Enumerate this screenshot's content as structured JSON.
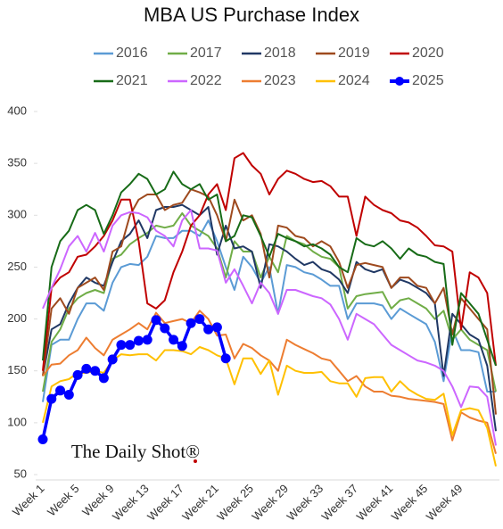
{
  "chart_data": {
    "type": "line",
    "title": "MBA US Purchase Index",
    "watermark": "The Daily Shot®",
    "categories": [
      "Week 1",
      null,
      null,
      null,
      "Week 5",
      null,
      null,
      null,
      "Week 9",
      null,
      null,
      null,
      "Week 13",
      null,
      null,
      null,
      "Week 17",
      null,
      null,
      null,
      "Week 21",
      null,
      null,
      null,
      "Week 25",
      null,
      null,
      null,
      "Week 29",
      null,
      null,
      null,
      "Week 33",
      null,
      null,
      null,
      "Week 37",
      null,
      null,
      null,
      "Week 41",
      null,
      null,
      null,
      "Week 45",
      null,
      null,
      null,
      "Week 49",
      null,
      null,
      null,
      null
    ],
    "ylim": [
      50,
      400
    ],
    "yticks": [
      50,
      100,
      150,
      200,
      250,
      300,
      350,
      400
    ],
    "series": [
      {
        "name": "2016",
        "color": "#5b9bd5",
        "values": [
          120,
          175,
          180,
          180,
          200,
          215,
          215,
          208,
          235,
          250,
          253,
          252,
          260,
          280,
          278,
          278,
          285,
          285,
          280,
          295,
          275,
          250,
          228,
          260,
          250,
          235,
          250,
          205,
          252,
          250,
          245,
          243,
          238,
          232,
          232,
          200,
          215,
          215,
          215,
          213,
          200,
          210,
          205,
          200,
          195,
          178,
          140,
          190,
          170,
          170,
          168,
          130,
          130
        ]
      },
      {
        "name": "2017",
        "color": "#70ad47",
        "values": [
          130,
          178,
          190,
          210,
          220,
          225,
          228,
          225,
          258,
          262,
          272,
          278,
          283,
          290,
          288,
          290,
          302,
          290,
          285,
          280,
          268,
          240,
          275,
          265,
          265,
          240,
          260,
          245,
          280,
          275,
          272,
          265,
          260,
          258,
          250,
          210,
          222,
          224,
          225,
          226,
          210,
          218,
          220,
          215,
          210,
          200,
          208,
          180,
          190,
          180,
          175,
          170,
          130
        ]
      },
      {
        "name": "2018",
        "color": "#203864",
        "values": [
          145,
          190,
          195,
          215,
          230,
          240,
          235,
          232,
          255,
          275,
          282,
          295,
          278,
          305,
          308,
          308,
          310,
          305,
          300,
          308,
          262,
          290,
          268,
          270,
          265,
          230,
          272,
          270,
          265,
          258,
          252,
          255,
          248,
          245,
          238,
          225,
          255,
          248,
          245,
          248,
          230,
          238,
          235,
          230,
          225,
          215,
          145,
          205,
          195,
          185,
          180,
          155,
          92
        ]
      },
      {
        "name": "2019",
        "color": "#9e4a1e",
        "values": [
          145,
          210,
          220,
          205,
          230,
          235,
          240,
          228,
          265,
          270,
          300,
          315,
          320,
          320,
          305,
          310,
          312,
          325,
          322,
          318,
          300,
          275,
          315,
          295,
          300,
          282,
          240,
          290,
          288,
          280,
          278,
          270,
          275,
          270,
          255,
          230,
          252,
          254,
          252,
          250,
          230,
          240,
          240,
          232,
          230,
          215,
          230,
          185,
          220,
          210,
          200,
          190,
          108
        ]
      },
      {
        "name": "2020",
        "color": "#c00000",
        "values": [
          150,
          230,
          240,
          245,
          260,
          262,
          270,
          280,
          295,
          315,
          315,
          275,
          215,
          210,
          218,
          245,
          265,
          290,
          300,
          320,
          330,
          305,
          355,
          360,
          348,
          340,
          320,
          335,
          343,
          340,
          335,
          332,
          333,
          328,
          318,
          318,
          280,
          318,
          310,
          305,
          302,
          295,
          293,
          288,
          280,
          271,
          270,
          265,
          190,
          245,
          240,
          225,
          155
        ]
      },
      {
        "name": "2021",
        "color": "#176b17",
        "values": [
          160,
          250,
          275,
          285,
          305,
          310,
          305,
          282,
          300,
          322,
          330,
          340,
          335,
          320,
          325,
          342,
          330,
          325,
          330,
          315,
          320,
          275,
          280,
          300,
          298,
          280,
          260,
          282,
          278,
          275,
          270,
          272,
          268,
          262,
          250,
          245,
          278,
          272,
          270,
          275,
          268,
          258,
          268,
          262,
          260,
          255,
          253,
          175,
          225,
          215,
          205,
          180,
          155
        ]
      },
      {
        "name": "2022",
        "color": "#cc66ff",
        "values": [
          210,
          230,
          248,
          270,
          280,
          265,
          283,
          265,
          290,
          300,
          303,
          302,
          298,
          285,
          280,
          270,
          295,
          305,
          268,
          268,
          266,
          235,
          248,
          232,
          215,
          235,
          225,
          205,
          228,
          228,
          225,
          222,
          220,
          214,
          200,
          180,
          205,
          200,
          195,
          185,
          175,
          170,
          165,
          160,
          158,
          155,
          150,
          135,
          115,
          135,
          134,
          125,
          78
        ]
      },
      {
        "name": "2023",
        "color": "#ed7d31",
        "values": [
          145,
          156,
          157,
          165,
          170,
          182,
          172,
          165,
          180,
          185,
          190,
          196,
          190,
          206,
          196,
          198,
          200,
          196,
          208,
          200,
          184,
          185,
          162,
          176,
          172,
          165,
          160,
          150,
          180,
          175,
          171,
          167,
          162,
          160,
          150,
          140,
          145,
          135,
          130,
          130,
          126,
          125,
          123,
          122,
          121,
          120,
          118,
          83,
          110,
          105,
          102,
          100,
          70
        ]
      },
      {
        "name": "2024",
        "color": "#ffc000",
        "values": [
          100,
          135,
          140,
          142,
          148,
          148,
          150,
          148,
          160,
          166,
          165,
          166,
          166,
          160,
          170,
          170,
          169,
          166,
          173,
          170,
          165,
          162,
          137,
          162,
          162,
          147,
          160,
          127,
          155,
          150,
          148,
          148,
          149,
          140,
          138,
          138,
          125,
          143,
          144,
          144,
          130,
          140,
          132,
          127,
          123,
          122,
          128,
          88,
          112,
          114,
          112,
          95,
          58
        ]
      },
      {
        "name": "2025",
        "color": "#0000ff",
        "values": [
          84,
          123,
          131,
          127,
          146,
          152,
          150,
          143,
          161,
          175,
          175,
          179,
          180,
          199,
          191,
          180,
          174,
          196,
          200,
          190,
          192,
          162,
          null,
          null,
          null,
          null,
          null,
          null,
          null,
          null,
          null,
          null,
          null,
          null,
          null,
          null,
          null,
          null,
          null,
          null,
          null,
          null,
          null,
          null,
          null,
          null,
          null,
          null,
          null,
          null,
          null,
          null,
          null
        ]
      }
    ]
  }
}
